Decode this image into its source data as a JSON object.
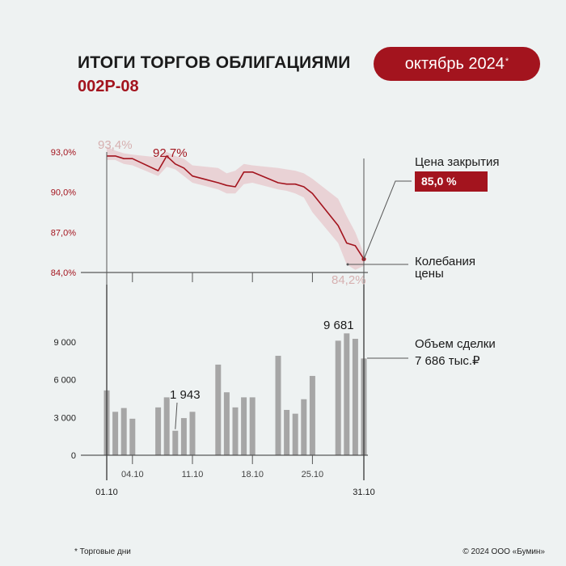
{
  "header": {
    "title": "ИТОГИ ТОРГОВ ОБЛИГАЦИЯМИ",
    "subtitle": "002Р-08",
    "period": "октябрь 2024",
    "period_mark": "*"
  },
  "footer": {
    "note": "* Торговые дни",
    "copyright": "© 2024 ООО «Бумин»"
  },
  "colors": {
    "accent": "#a3141e",
    "band": "#e8cdd0",
    "bar": "#a6a6a6",
    "axis": "#333333",
    "peak_label": "#d6b0b0",
    "tick_label_price": "#a3141e"
  },
  "chart_data": [
    {
      "type": "line",
      "title": "Цена закрытия",
      "ylim": [
        84,
        93.6
      ],
      "yticks": [
        84,
        87,
        90,
        93
      ],
      "ytick_labels": [
        "84,0%",
        "87,0%",
        "90,0%",
        "93,0%"
      ],
      "days": [
        1,
        2,
        3,
        4,
        7,
        8,
        9,
        10,
        11,
        14,
        15,
        16,
        17,
        18,
        21,
        22,
        23,
        24,
        25,
        28,
        29,
        30,
        31
      ],
      "series": [
        {
          "name": "Цена закрытия",
          "values": [
            92.7,
            92.7,
            92.5,
            92.5,
            91.6,
            92.7,
            92.1,
            91.8,
            91.2,
            90.7,
            90.5,
            90.4,
            91.5,
            91.5,
            90.7,
            90.6,
            90.6,
            90.4,
            89.9,
            87.5,
            86.2,
            86.0,
            85.0
          ]
        },
        {
          "name": "Колебания цены (мин)",
          "values": [
            92.4,
            92.4,
            92.1,
            92.0,
            91.2,
            91.9,
            91.7,
            91.2,
            90.7,
            90.2,
            89.9,
            89.9,
            90.6,
            90.7,
            90.2,
            90.1,
            89.9,
            89.6,
            88.5,
            86.2,
            84.6,
            84.2,
            84.5
          ]
        },
        {
          "name": "Колебания цены (макс)",
          "values": [
            93.4,
            93.1,
            92.9,
            92.8,
            92.6,
            93.0,
            92.7,
            92.5,
            92.0,
            91.8,
            91.4,
            91.6,
            92.1,
            92.0,
            91.8,
            91.7,
            91.6,
            91.4,
            91.0,
            89.5,
            88.2,
            87.0,
            85.4
          ]
        }
      ],
      "annotations": {
        "max_range": "93,4%",
        "max_close": "92,7%",
        "min_range": "84,2%"
      },
      "legend": {
        "close_label": "Цена закрытия",
        "close_value": "85,0 %",
        "range_label_line1": "Колебания",
        "range_label_line2": "цены"
      }
    },
    {
      "type": "bar",
      "title": "Объем сделки",
      "ylim": [
        0,
        10600
      ],
      "yticks": [
        0,
        3000,
        6000,
        9000
      ],
      "ytick_labels": [
        "0",
        "3 000",
        "6 000",
        "9 000"
      ],
      "days": [
        1,
        2,
        3,
        4,
        7,
        8,
        9,
        10,
        11,
        14,
        15,
        16,
        17,
        18,
        21,
        22,
        23,
        24,
        25,
        28,
        29,
        30,
        31
      ],
      "values": [
        5150,
        3450,
        3750,
        2900,
        3800,
        4600,
        1943,
        2950,
        3450,
        7200,
        5000,
        3800,
        4600,
        4600,
        7900,
        3600,
        3300,
        4450,
        6300,
        9100,
        9681,
        9250,
        7686
      ],
      "annotations": {
        "max_value": "9 681",
        "min_value": "1 943"
      },
      "legend": {
        "volume_label": "Объем сделки",
        "volume_value": "7 686 тыс.₽"
      }
    }
  ],
  "x_axis": {
    "labels": [
      {
        "day": 1,
        "text": "01.10",
        "style": "edge"
      },
      {
        "day": 4,
        "text": "04.10",
        "style": "mid"
      },
      {
        "day": 11,
        "text": "11.10",
        "style": "mid"
      },
      {
        "day": 18,
        "text": "18.10",
        "style": "mid"
      },
      {
        "day": 25,
        "text": "25.10",
        "style": "mid"
      },
      {
        "day": 31,
        "text": "31.10",
        "style": "edge"
      }
    ]
  }
}
